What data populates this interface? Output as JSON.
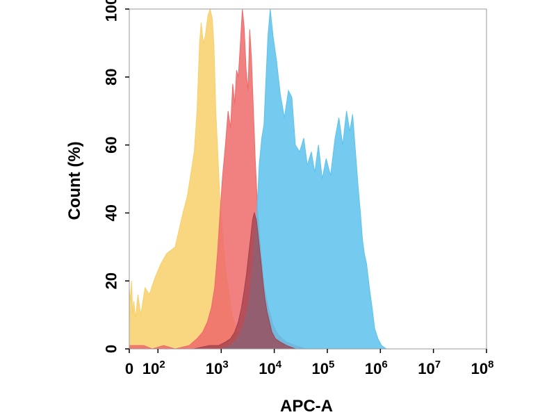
{
  "chart_data": {
    "type": "area",
    "xlabel": "APC-A",
    "ylabel": "Count  (%)",
    "xscale": "biexponential",
    "xlim": [
      0,
      100000000
    ],
    "ylim": [
      0,
      100
    ],
    "x_ticks": [
      {
        "label": "0",
        "value": 0
      },
      {
        "label": "10",
        "exp": "2",
        "value": 100
      },
      {
        "label": "10",
        "exp": "3",
        "value": 1000
      },
      {
        "label": "10",
        "exp": "4",
        "value": 10000
      },
      {
        "label": "10",
        "exp": "5",
        "value": 100000
      },
      {
        "label": "10",
        "exp": "6",
        "value": 1000000
      },
      {
        "label": "10",
        "exp": "7",
        "value": 10000000
      },
      {
        "label": "10",
        "exp": "8",
        "value": 100000000
      }
    ],
    "y_ticks": [
      {
        "label": "0",
        "value": 0
      },
      {
        "label": "20",
        "value": 20
      },
      {
        "label": "40",
        "value": 40
      },
      {
        "label": "60",
        "value": 60
      },
      {
        "label": "80",
        "value": 80
      },
      {
        "label": "100",
        "value": 100
      }
    ],
    "grid": false,
    "legend": "none",
    "series": [
      {
        "color": "#F8D06A",
        "points": [
          [
            0,
            18
          ],
          [
            4,
            14
          ],
          [
            8,
            20
          ],
          [
            12,
            10
          ],
          [
            16,
            14
          ],
          [
            22,
            9
          ],
          [
            30,
            16
          ],
          [
            40,
            10
          ],
          [
            55,
            18
          ],
          [
            70,
            16
          ],
          [
            90,
            21
          ],
          [
            110,
            25
          ],
          [
            130,
            28
          ],
          [
            160,
            30
          ],
          [
            190,
            40
          ],
          [
            230,
            45
          ],
          [
            270,
            52
          ],
          [
            310,
            58
          ],
          [
            350,
            70
          ],
          [
            390,
            90
          ],
          [
            420,
            96
          ],
          [
            460,
            90
          ],
          [
            500,
            92
          ],
          [
            560,
            98
          ],
          [
            620,
            100
          ],
          [
            680,
            97
          ],
          [
            730,
            89
          ],
          [
            790,
            70
          ],
          [
            860,
            58
          ],
          [
            940,
            45
          ],
          [
            1050,
            35
          ],
          [
            1180,
            25
          ],
          [
            1350,
            18
          ],
          [
            1600,
            10
          ],
          [
            1900,
            6
          ],
          [
            2300,
            4
          ],
          [
            2800,
            2
          ],
          [
            3600,
            1
          ],
          [
            5000,
            0
          ]
        ]
      },
      {
        "color": "#EF6A6A",
        "points": [
          [
            0,
            1
          ],
          [
            50,
            1
          ],
          [
            80,
            0
          ],
          [
            120,
            1
          ],
          [
            160,
            0
          ],
          [
            250,
            1
          ],
          [
            350,
            3
          ],
          [
            450,
            5
          ],
          [
            550,
            8
          ],
          [
            650,
            12
          ],
          [
            750,
            18
          ],
          [
            850,
            28
          ],
          [
            950,
            40
          ],
          [
            1050,
            50
          ],
          [
            1200,
            60
          ],
          [
            1350,
            70
          ],
          [
            1500,
            65
          ],
          [
            1650,
            78
          ],
          [
            1800,
            72
          ],
          [
            1950,
            82
          ],
          [
            2100,
            80
          ],
          [
            2300,
            90
          ],
          [
            2500,
            100
          ],
          [
            2700,
            95
          ],
          [
            2950,
            82
          ],
          [
            3200,
            76
          ],
          [
            3450,
            94
          ],
          [
            3700,
            86
          ],
          [
            4000,
            72
          ],
          [
            4400,
            55
          ],
          [
            4900,
            40
          ],
          [
            5600,
            28
          ],
          [
            6500,
            18
          ],
          [
            7800,
            12
          ],
          [
            9500,
            7
          ],
          [
            12000,
            4
          ],
          [
            17000,
            2
          ],
          [
            25000,
            1
          ],
          [
            40000,
            0
          ]
        ]
      },
      {
        "color": "#5CC2EC",
        "points": [
          [
            0,
            0
          ],
          [
            1000,
            0
          ],
          [
            1500,
            1
          ],
          [
            2000,
            3
          ],
          [
            2500,
            6
          ],
          [
            3000,
            10
          ],
          [
            3400,
            15
          ],
          [
            3800,
            22
          ],
          [
            4200,
            30
          ],
          [
            4700,
            40
          ],
          [
            5200,
            54
          ],
          [
            5800,
            62
          ],
          [
            6400,
            66
          ],
          [
            7000,
            80
          ],
          [
            7600,
            92
          ],
          [
            8400,
            100
          ],
          [
            9500,
            92
          ],
          [
            11000,
            85
          ],
          [
            13000,
            75
          ],
          [
            15500,
            68
          ],
          [
            18500,
            76
          ],
          [
            21500,
            74
          ],
          [
            25000,
            60
          ],
          [
            30000,
            58
          ],
          [
            36000,
            62
          ],
          [
            42000,
            54
          ],
          [
            50000,
            58
          ],
          [
            58000,
            52
          ],
          [
            68000,
            60
          ],
          [
            80000,
            50
          ],
          [
            95000,
            56
          ],
          [
            115000,
            51
          ],
          [
            140000,
            62
          ],
          [
            165000,
            68
          ],
          [
            195000,
            60
          ],
          [
            230000,
            70
          ],
          [
            265000,
            64
          ],
          [
            300000,
            69
          ],
          [
            340000,
            58
          ],
          [
            380000,
            48
          ],
          [
            420000,
            40
          ],
          [
            460000,
            32
          ],
          [
            500000,
            28
          ],
          [
            550000,
            25
          ],
          [
            620000,
            18
          ],
          [
            700000,
            12
          ],
          [
            780000,
            6
          ],
          [
            900000,
            3
          ],
          [
            1050000,
            1
          ],
          [
            1300000,
            0
          ]
        ]
      },
      {
        "color": "#A0404E",
        "opacity": 0.75,
        "points": [
          [
            300,
            0
          ],
          [
            600,
            1
          ],
          [
            900,
            1
          ],
          [
            1200,
            2
          ],
          [
            1500,
            3
          ],
          [
            1800,
            5
          ],
          [
            2100,
            8
          ],
          [
            2400,
            12
          ],
          [
            2700,
            17
          ],
          [
            3000,
            22
          ],
          [
            3300,
            28
          ],
          [
            3600,
            33
          ],
          [
            3900,
            38
          ],
          [
            4200,
            40
          ],
          [
            4600,
            38
          ],
          [
            5000,
            33
          ],
          [
            5500,
            27
          ],
          [
            6000,
            21
          ],
          [
            6600,
            15
          ],
          [
            7300,
            11
          ],
          [
            8100,
            8
          ],
          [
            9000,
            5
          ],
          [
            10500,
            3
          ],
          [
            13000,
            2
          ],
          [
            17000,
            1
          ],
          [
            25000,
            0
          ]
        ]
      }
    ]
  }
}
